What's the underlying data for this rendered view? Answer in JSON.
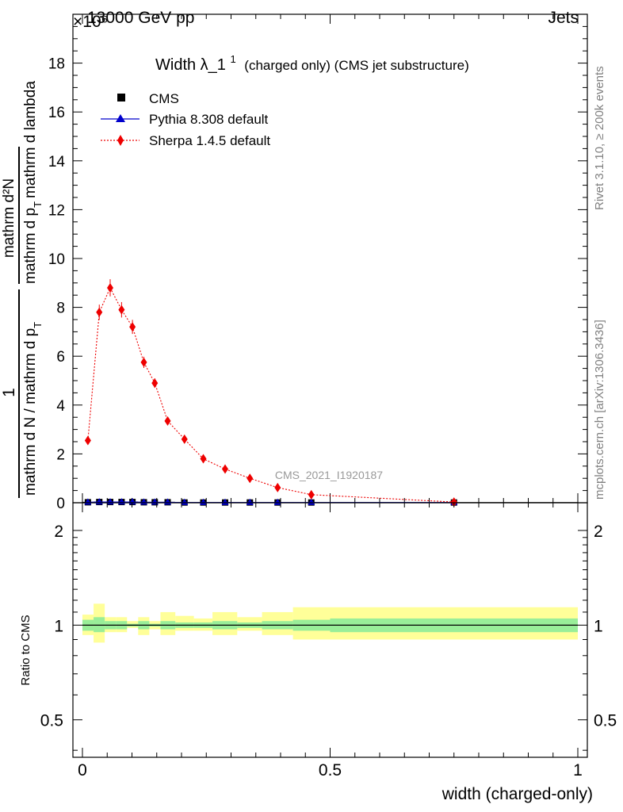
{
  "header": {
    "exponent": "×10⁶",
    "collision": "13000 GeV pp",
    "process": "Jets"
  },
  "side_labels": {
    "rivet": "Rivet 3.1.10, ≥ 200k events",
    "mcplots": "mcplots.cern.ch [arXiv:1306.3436]"
  },
  "chart_data": [
    {
      "type": "scatter",
      "panel": "main",
      "title": "Width λ_1^1 (charged only) (CMS jet substructure)",
      "title_parts": {
        "main": "Width λ_1",
        "superscript": "1",
        "rest": "(charged only) (CMS jet substructure)"
      },
      "ylabel_fraction": {
        "numerator_left": "1",
        "denominator_left": "mathrm d N / mathrm d p",
        "denominator_left_sub": "T",
        "numerator_right": "mathrm d²N",
        "denominator_right": "mathrm d p",
        "denominator_right_sub": "T",
        "denominator_right_tail": "mathrm d lambda"
      },
      "xlim": [
        0,
        1
      ],
      "ylim": [
        0,
        20
      ],
      "y_scale_factor": 1000000,
      "y_ticks": [
        0,
        2,
        4,
        6,
        8,
        10,
        12,
        14,
        16,
        18
      ],
      "y_tick_labels": [
        "0",
        "2",
        "4",
        "6",
        "8",
        "10",
        "12",
        "14",
        "16",
        "18"
      ],
      "watermark": "CMS_2021_I1920187",
      "legend_position": "top-left",
      "legend": [
        {
          "name": "CMS",
          "color": "#000000",
          "marker": "square"
        },
        {
          "name": "Pythia 8.308 default",
          "color": "#0000cc",
          "marker": "triangle"
        },
        {
          "name": "Sherpa 1.4.5 default",
          "color": "#ee0000",
          "marker": "diamond"
        }
      ],
      "bin_edges": [
        0,
        0.0225,
        0.045,
        0.0675,
        0.09,
        0.1125,
        0.135,
        0.1575,
        0.1875,
        0.225,
        0.2625,
        0.3125,
        0.3625,
        0.425,
        0.5,
        1.0
      ],
      "bin_centers": [
        0.011,
        0.034,
        0.056,
        0.079,
        0.101,
        0.124,
        0.146,
        0.172,
        0.206,
        0.244,
        0.288,
        0.338,
        0.394,
        0.462,
        0.75
      ],
      "series": [
        {
          "name": "CMS",
          "color": "#000000",
          "values": [
            0.02,
            0.03,
            0.03,
            0.03,
            0.03,
            0.02,
            0.02,
            0.02,
            0.01,
            0.01,
            0.01,
            0.01,
            0.01,
            0.01,
            0.01
          ]
        },
        {
          "name": "Pythia 8.308 default",
          "color": "#0000cc",
          "values": [
            0.02,
            0.03,
            0.03,
            0.03,
            0.03,
            0.02,
            0.02,
            0.02,
            0.01,
            0.01,
            0.01,
            0.01,
            0.01,
            0.01,
            0.01
          ]
        },
        {
          "name": "Sherpa 1.4.5 default",
          "color": "#ee0000",
          "values": [
            2.55,
            7.8,
            8.8,
            7.9,
            7.2,
            5.75,
            4.9,
            3.35,
            2.6,
            1.8,
            1.38,
            1.0,
            0.62,
            0.33,
            0.03
          ]
        }
      ]
    },
    {
      "type": "band",
      "panel": "ratio",
      "ylabel": "Ratio to CMS",
      "xlabel": "width (charged-only)",
      "xlim": [
        0,
        1
      ],
      "ylim": [
        0.38,
        2.45
      ],
      "y_scale": "log",
      "x_ticks": [
        0,
        0.5,
        1
      ],
      "x_tick_labels": [
        "0",
        "0.5",
        "1"
      ],
      "y_ticks": [
        0.5,
        1,
        2
      ],
      "y_tick_labels": [
        "0.5",
        "1",
        "2"
      ],
      "reference_line": 1,
      "band_colors": {
        "inner": "#99ee99",
        "outer": "#ffff99"
      },
      "bin_edges": [
        0,
        0.0225,
        0.045,
        0.0675,
        0.09,
        0.1125,
        0.135,
        0.1575,
        0.1875,
        0.225,
        0.2625,
        0.3125,
        0.3625,
        0.425,
        0.5,
        1.0
      ],
      "inner_band": [
        [
          0.96,
          1.04
        ],
        [
          0.95,
          1.06
        ],
        [
          0.97,
          1.03
        ],
        [
          0.97,
          1.03
        ],
        [
          0.99,
          1.01
        ],
        [
          0.97,
          1.03
        ],
        [
          0.99,
          1.01
        ],
        [
          0.97,
          1.03
        ],
        [
          0.98,
          1.02
        ],
        [
          0.98,
          1.02
        ],
        [
          0.97,
          1.03
        ],
        [
          0.98,
          1.02
        ],
        [
          0.97,
          1.03
        ],
        [
          0.96,
          1.04
        ],
        [
          0.95,
          1.05
        ]
      ],
      "outer_band": [
        [
          0.93,
          1.08
        ],
        [
          0.88,
          1.17
        ],
        [
          0.95,
          1.06
        ],
        [
          0.95,
          1.06
        ],
        [
          0.98,
          1.03
        ],
        [
          0.93,
          1.06
        ],
        [
          0.97,
          1.03
        ],
        [
          0.93,
          1.1
        ],
        [
          0.96,
          1.07
        ],
        [
          0.96,
          1.05
        ],
        [
          0.93,
          1.1
        ],
        [
          0.96,
          1.06
        ],
        [
          0.93,
          1.1
        ],
        [
          0.9,
          1.14
        ],
        [
          0.9,
          1.14
        ]
      ]
    }
  ]
}
